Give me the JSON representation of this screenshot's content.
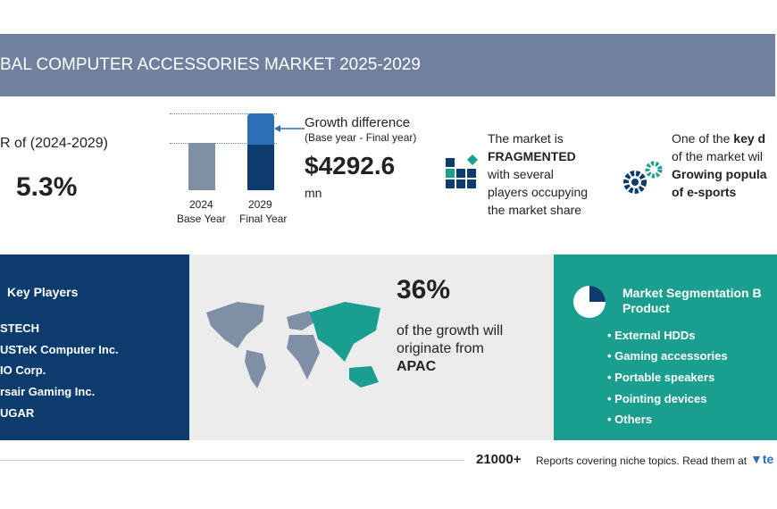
{
  "header": {
    "title": "BAL COMPUTER ACCESSORIES MARKET 2025-2029"
  },
  "cagr": {
    "label": "R of (2024-2029)",
    "value": "5.3%"
  },
  "growth": {
    "bars": [
      {
        "year": "2024",
        "label": "Base Year"
      },
      {
        "year": "2029",
        "label": "Final Year"
      }
    ],
    "title": "Growth difference",
    "subtitle": "(Base year - Final year)",
    "value": "$4292.6",
    "unit": "mn"
  },
  "market": {
    "lines": [
      "The market is",
      "FRAGMENTED",
      "with several",
      "players occupying",
      "the market share"
    ]
  },
  "driver": {
    "line1a": "One of the ",
    "line1b": "key d",
    "line2": "of the market wil",
    "line3": "Growing popula",
    "line4": "of e-sports"
  },
  "players": {
    "title": "Key Players",
    "items": [
      "STECH",
      "USTeK Computer Inc.",
      "IO Corp.",
      "rsair Gaming Inc.",
      "UGAR"
    ]
  },
  "region": {
    "share": "36%",
    "lines": [
      "of the growth will",
      "originate from"
    ],
    "name": "APAC"
  },
  "segmentation": {
    "title": [
      "Market Segmentation B",
      "Product"
    ],
    "items": [
      "External HDDs",
      "Gaming accessories",
      "Portable speakers",
      "Pointing devices",
      "Others"
    ]
  },
  "footer": {
    "count": "21000+",
    "text": "Reports covering niche topics. Read them at",
    "brand": "te"
  }
}
